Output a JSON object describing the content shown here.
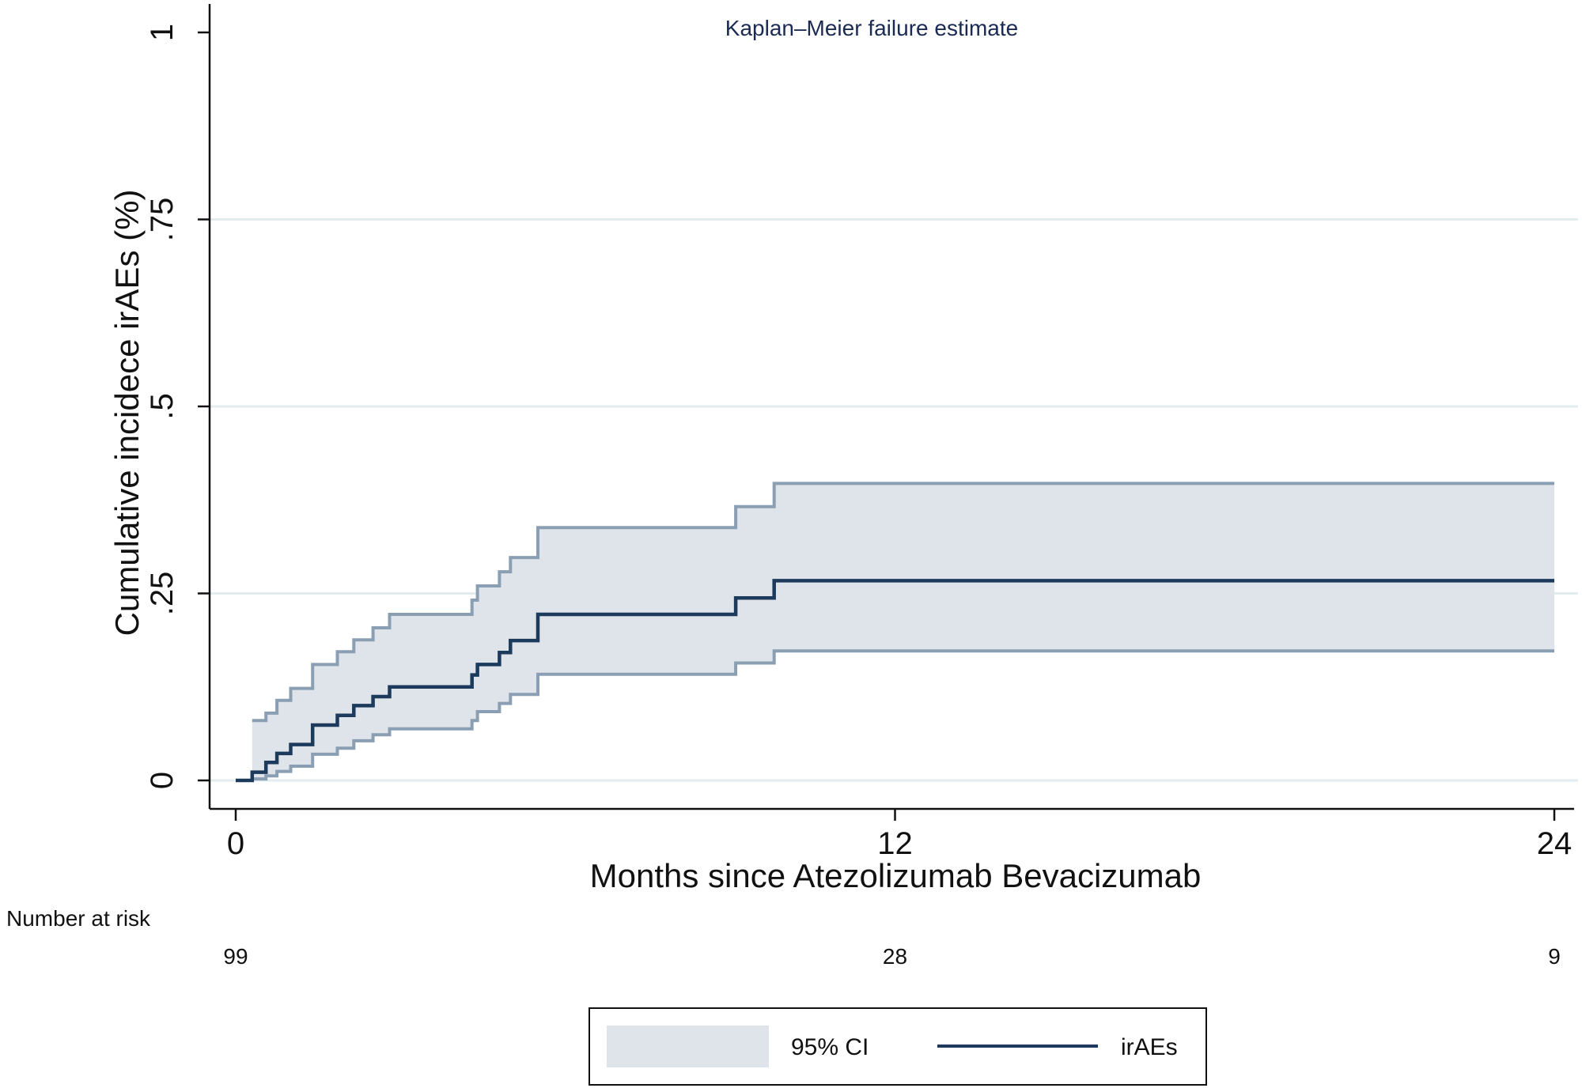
{
  "chart_data": {
    "type": "line",
    "title": "Kaplan–Meier failure estimate",
    "xlabel": "Months since Atezolizumab Bevacizumab",
    "ylabel": "Cumulative incidece irAEs (%)",
    "xlim": [
      0,
      24
    ],
    "ylim": [
      0,
      1
    ],
    "xticks": [
      0,
      12,
      24
    ],
    "xtick_labels": [
      "0",
      "12",
      "24"
    ],
    "yticks": [
      0,
      0.25,
      0.5,
      0.75,
      1
    ],
    "ytick_labels": [
      "0",
      ".25",
      ".5",
      ".75",
      "1"
    ],
    "grid": true,
    "legend_position": "bottom",
    "series": [
      {
        "name": "irAEs",
        "color": "#1b3a5c",
        "x": [
          0,
          0.3,
          0.55,
          0.75,
          1.0,
          1.4,
          1.85,
          2.15,
          2.5,
          2.8,
          4.3,
          4.4,
          4.8,
          5.0,
          5.5,
          9.1,
          9.8,
          24
        ],
        "y": [
          0,
          0.011,
          0.024,
          0.036,
          0.048,
          0.074,
          0.087,
          0.1,
          0.112,
          0.125,
          0.141,
          0.155,
          0.171,
          0.187,
          0.222,
          0.244,
          0.267,
          0.267
        ]
      },
      {
        "name": "95% CI upper",
        "color": "#8a9fb3",
        "x": [
          0.3,
          0.55,
          0.75,
          1.0,
          1.4,
          1.85,
          2.15,
          2.5,
          2.8,
          4.3,
          4.4,
          4.8,
          5.0,
          5.5,
          9.1,
          9.8,
          24
        ],
        "y": [
          0.08,
          0.09,
          0.107,
          0.123,
          0.155,
          0.172,
          0.188,
          0.204,
          0.222,
          0.241,
          0.26,
          0.279,
          0.298,
          0.338,
          0.366,
          0.397,
          0.397
        ]
      },
      {
        "name": "95% CI lower",
        "color": "#8a9fb3",
        "x": [
          0.3,
          0.55,
          0.75,
          1.0,
          1.4,
          1.85,
          2.15,
          2.5,
          2.8,
          4.3,
          4.4,
          4.8,
          5.0,
          5.5,
          9.1,
          9.8,
          24
        ],
        "y": [
          0.002,
          0.006,
          0.012,
          0.019,
          0.035,
          0.043,
          0.053,
          0.061,
          0.069,
          0.08,
          0.092,
          0.103,
          0.115,
          0.142,
          0.157,
          0.173,
          0.173
        ]
      }
    ],
    "number_at_risk": {
      "label": "Number at risk",
      "times": [
        0,
        12,
        24
      ],
      "values": [
        "99",
        "28",
        "9"
      ]
    },
    "legend": [
      {
        "label": "95% CI",
        "kind": "band",
        "color": "#dfe3ea"
      },
      {
        "label": "irAEs",
        "kind": "line",
        "color": "#1b3a5c"
      }
    ]
  }
}
